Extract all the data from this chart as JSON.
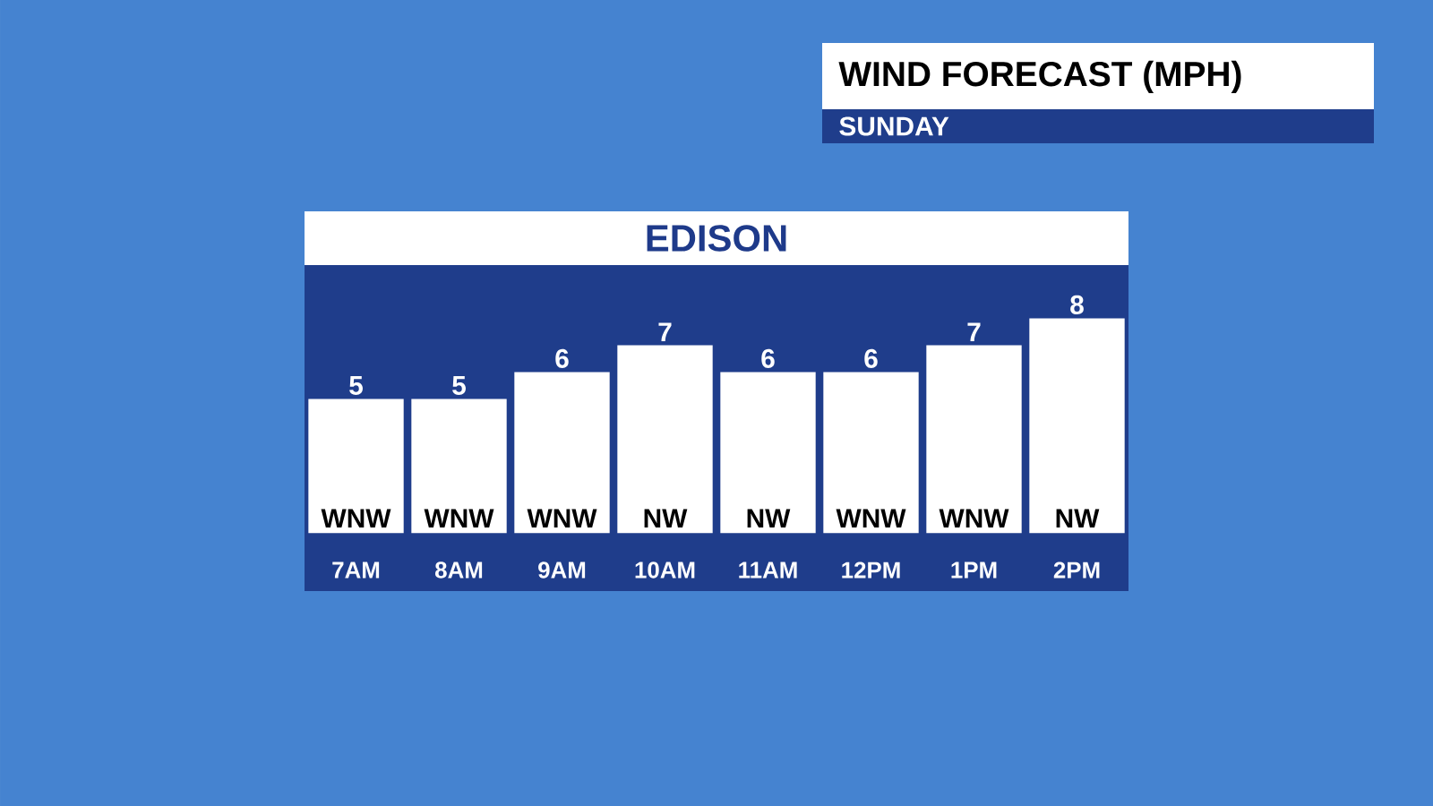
{
  "chart_data": {
    "type": "bar",
    "title": "WIND FORECAST (MPH)",
    "subtitle": "SUNDAY",
    "categories": [
      "7AM",
      "8AM",
      "9AM",
      "10AM",
      "11AM",
      "12PM",
      "1PM",
      "2PM"
    ],
    "values": [
      5,
      5,
      6,
      7,
      6,
      6,
      7,
      8
    ],
    "color": "#ffffff",
    "data_labels": true,
    "tick_labels": "x",
    "annotations": [
      "EDISON",
      {
        "text": "WNW",
        "x": "7AM",
        "y": 0
      },
      {
        "text": "WNW",
        "x": "8AM",
        "y": 0
      },
      {
        "text": "WNW",
        "x": "9AM",
        "y": 0
      },
      {
        "text": "NW",
        "x": "10AM",
        "y": 0
      },
      {
        "text": "NW",
        "x": "11AM",
        "y": 0
      },
      {
        "text": "WNW",
        "x": "12PM",
        "y": 0
      },
      {
        "text": "WNW",
        "x": "1PM",
        "y": 0
      },
      {
        "text": "NW",
        "x": "2PM",
        "y": 0
      }
    ]
  }
}
